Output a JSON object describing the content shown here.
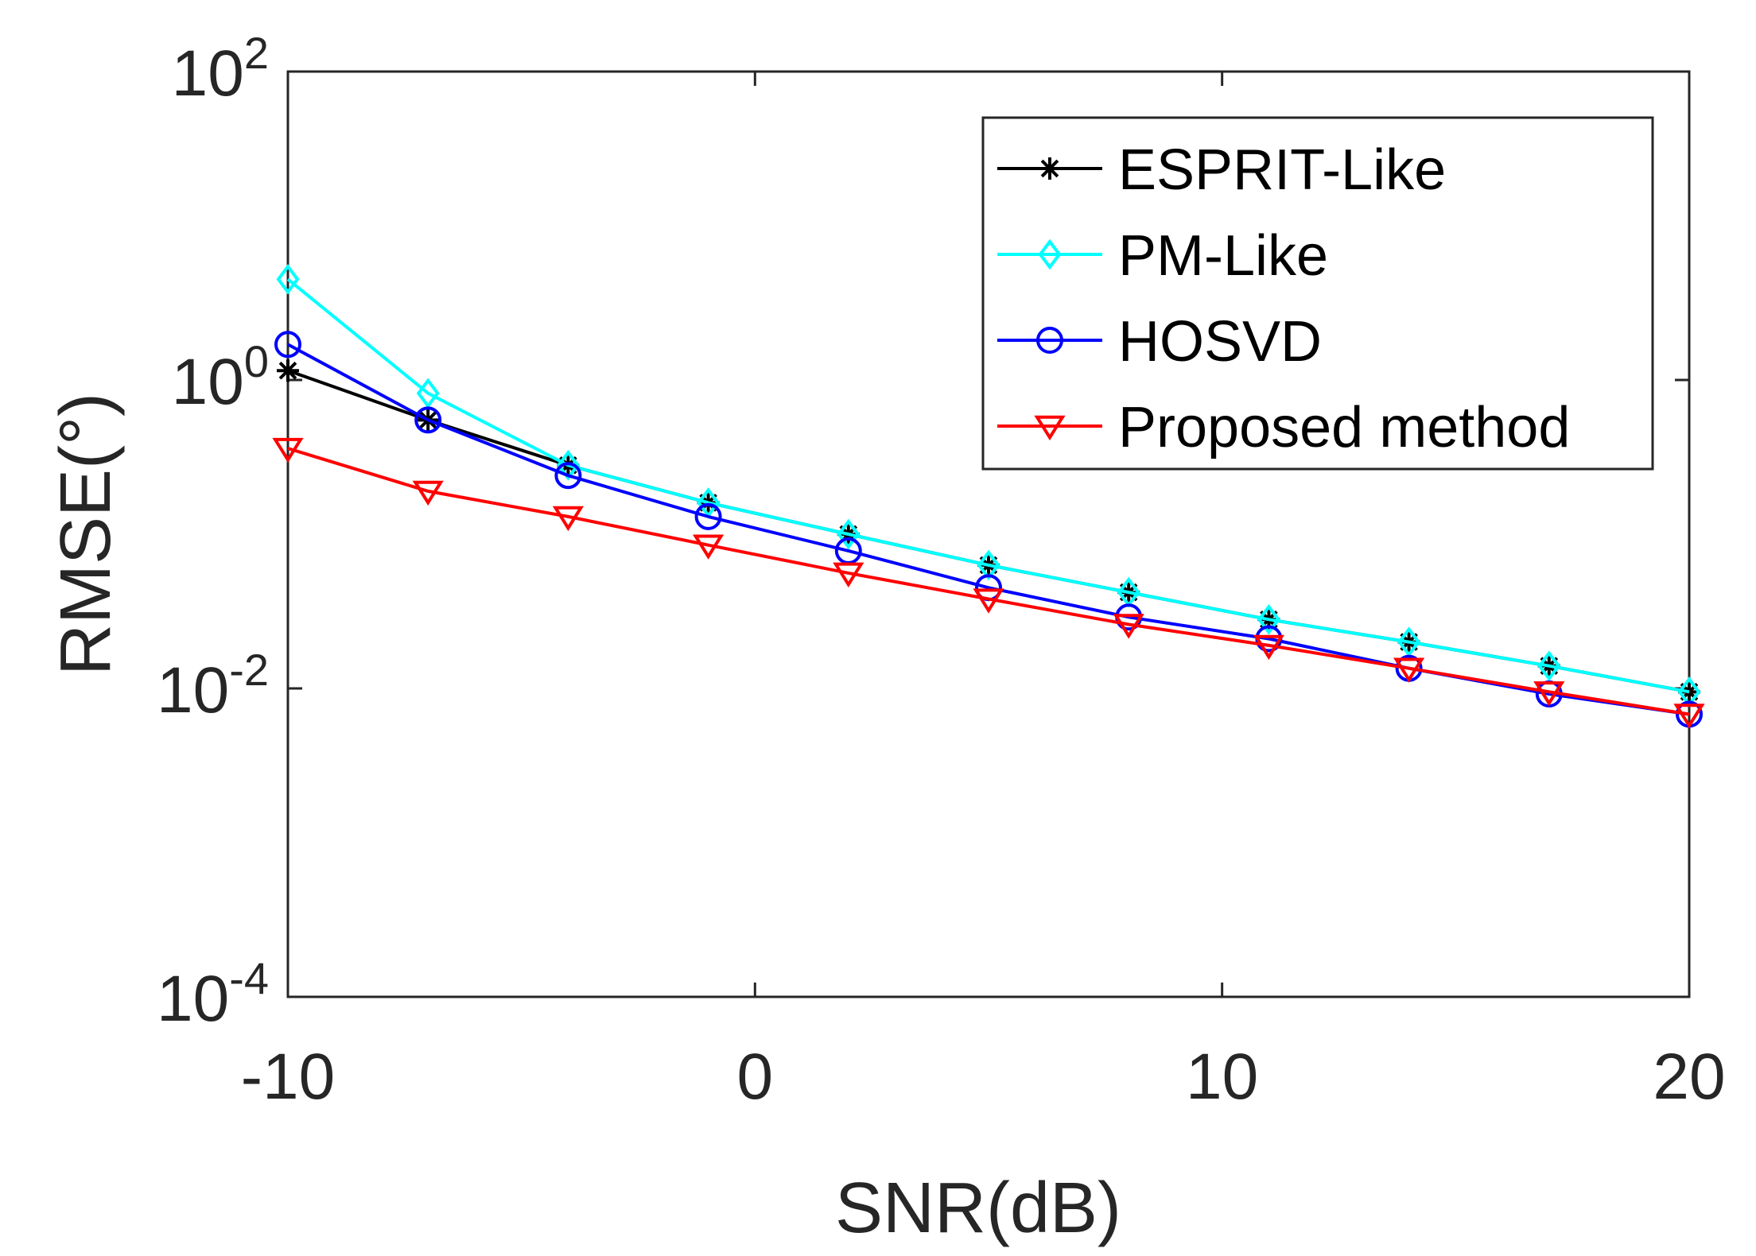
{
  "chart_data": {
    "type": "line",
    "xlabel": "SNR(dB)",
    "ylabel": "RMSE(°)",
    "yscale": "log",
    "xlim": [
      -10,
      20
    ],
    "ylim_log10": [
      -4,
      2
    ],
    "xticks": [
      {
        "value": -10,
        "label": "-10"
      },
      {
        "value": 0,
        "label": "0"
      },
      {
        "value": 10,
        "label": "10"
      },
      {
        "value": 20,
        "label": "20"
      }
    ],
    "yticks": [
      {
        "exp": 2,
        "base": "10",
        "sup": "2"
      },
      {
        "exp": 0,
        "base": "10",
        "sup": "0"
      },
      {
        "exp": -2,
        "base": "10",
        "sup": "-2"
      },
      {
        "exp": -4,
        "base": "10",
        "sup": "-4"
      }
    ],
    "legend_position": "top-right",
    "x": [
      -10,
      -7,
      -4,
      -1,
      2,
      5,
      8,
      11,
      14,
      17,
      20
    ],
    "series": [
      {
        "name": "ESPRIT-Like",
        "color": "#000000",
        "marker": "asterisk",
        "values": [
          1.15,
          0.55,
          0.28,
          0.16,
          0.1,
          0.063,
          0.042,
          0.028,
          0.02,
          0.014,
          0.0095
        ]
      },
      {
        "name": "PM-Like",
        "color": "#00ffff",
        "marker": "diamond",
        "values": [
          4.5,
          0.82,
          0.28,
          0.16,
          0.1,
          0.063,
          0.042,
          0.028,
          0.02,
          0.014,
          0.0095
        ]
      },
      {
        "name": "HOSVD",
        "color": "#0000ff",
        "marker": "circle",
        "values": [
          1.7,
          0.55,
          0.24,
          0.13,
          0.078,
          0.045,
          0.029,
          0.021,
          0.0135,
          0.0092,
          0.0068
        ]
      },
      {
        "name": "Proposed method",
        "color": "#ff0000",
        "marker": "triangle-down",
        "values": [
          0.36,
          0.19,
          0.13,
          0.085,
          0.056,
          0.038,
          0.026,
          0.019,
          0.0135,
          0.0095,
          0.0068
        ]
      }
    ]
  }
}
